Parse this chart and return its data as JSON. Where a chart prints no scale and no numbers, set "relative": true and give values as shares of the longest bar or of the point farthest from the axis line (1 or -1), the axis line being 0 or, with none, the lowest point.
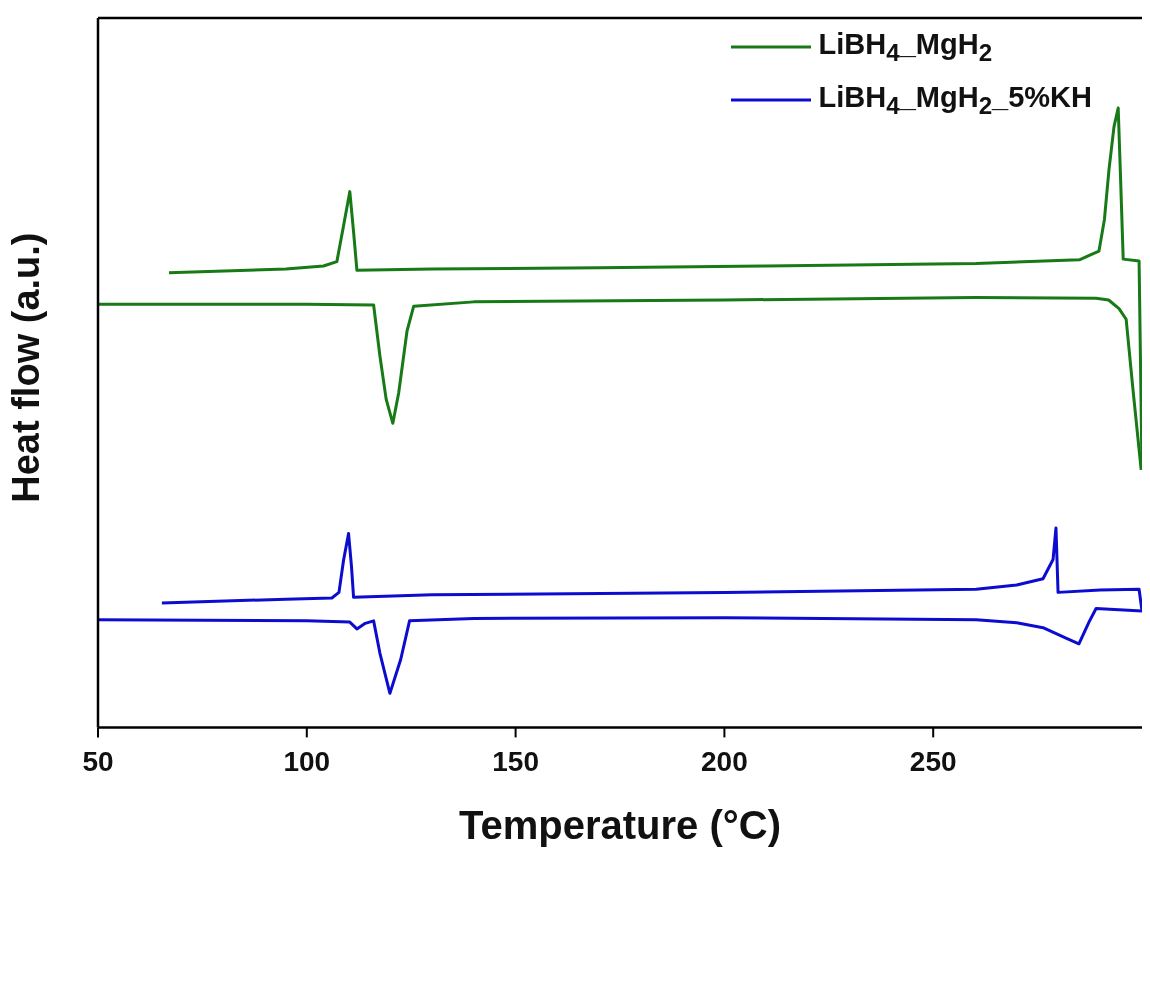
{
  "chart_data": {
    "type": "line",
    "xlabel": "Temperature (°C)",
    "ylabel": "Heat flow (a.u.)",
    "relative": true,
    "xlim": [
      50,
      300
    ],
    "xticks": [
      50,
      100,
      150,
      200,
      250
    ],
    "grid": false,
    "legend": "top right",
    "marker": "none",
    "line_style": "solid",
    "series": [
      {
        "name": "LiBH$_{4}$_MgH$_{2}$",
        "color": "#177a17",
        "x": [
          67.0,
          95,
          104,
          107.2,
          108.8,
          110.3,
          111.2,
          112.0,
          130,
          170,
          210,
          260.3,
          285,
          289.7,
          291,
          292.1,
          293.3,
          294.3,
          294.9,
          295.5,
          299.3,
          300
        ],
        "values": [
          0.734,
          0.74,
          0.745,
          0.752,
          0.81,
          0.865,
          0.8,
          0.738,
          0.74,
          0.742,
          0.745,
          0.749,
          0.755,
          0.769,
          0.82,
          0.901,
          0.97,
          1.0,
          0.88,
          0.756,
          0.753,
          0.416
        ]
      },
      {
        "color": "#177a17",
        "x": [
          50,
          100,
          116.0,
          117.5,
          119,
          120.6,
          122,
          124,
          125.6,
          140,
          200,
          260,
          289,
          292,
          294.5,
          296.2,
          297.8,
          299.8
        ],
        "values": [
          0.683,
          0.683,
          0.682,
          0.6,
          0.53,
          0.491,
          0.54,
          0.64,
          0.68,
          0.687,
          0.69,
          0.694,
          0.693,
          0.69,
          0.676,
          0.659,
          0.548,
          0.416
        ]
      },
      {
        "name": "LiBH$_{4}$_MgH$_{2}$_5%KH",
        "color": "#0c0cd0",
        "x": [
          65.3,
          95,
          106,
          107.7,
          108.8,
          110.0,
          110.7,
          111.2,
          130,
          200,
          260.3,
          270,
          276.3,
          278.7,
          279.4,
          279.9,
          290,
          299.3,
          300
        ],
        "values": [
          0.201,
          0.207,
          0.209,
          0.218,
          0.27,
          0.313,
          0.26,
          0.21,
          0.214,
          0.218,
          0.223,
          0.23,
          0.24,
          0.271,
          0.322,
          0.218,
          0.222,
          0.223,
          0.188
        ]
      },
      {
        "color": "#0c0cd0",
        "x": [
          50,
          100,
          110.3,
          112.0,
          114,
          116.0,
          117.5,
          119.9,
          122.5,
          124.6,
          140,
          200,
          260.3,
          270,
          276.3,
          281.8,
          284.9,
          287.3,
          289,
          300
        ],
        "values": [
          0.174,
          0.172,
          0.17,
          0.159,
          0.168,
          0.172,
          0.12,
          0.055,
          0.11,
          0.172,
          0.176,
          0.177,
          0.174,
          0.169,
          0.161,
          0.144,
          0.135,
          0.17,
          0.192,
          0.188
        ]
      }
    ]
  }
}
